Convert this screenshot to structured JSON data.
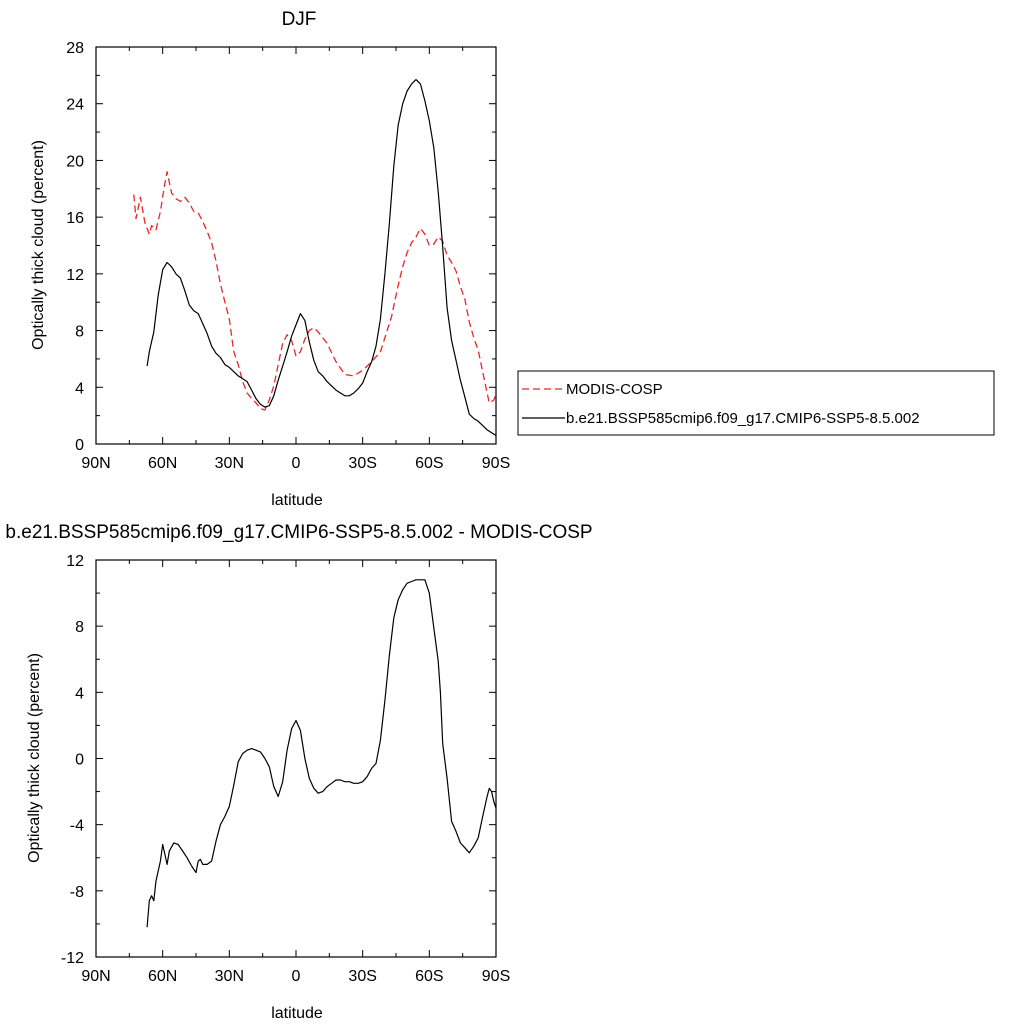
{
  "chart_data": [
    {
      "type": "line",
      "title": "DJF",
      "xlabel": "latitude",
      "ylabel": "Optically thick cloud (percent)",
      "xlim": [
        90,
        -90
      ],
      "ylim": [
        0,
        28
      ],
      "xticks": [
        {
          "value": 90,
          "label": "90N"
        },
        {
          "value": 60,
          "label": "60N"
        },
        {
          "value": 30,
          "label": "30N"
        },
        {
          "value": 0,
          "label": "0"
        },
        {
          "value": -30,
          "label": "30S"
        },
        {
          "value": -60,
          "label": "60S"
        },
        {
          "value": -90,
          "label": "90S"
        }
      ],
      "yticks": [
        0,
        4,
        8,
        12,
        16,
        20,
        24,
        28
      ],
      "legend_position": "right",
      "series": [
        {
          "name": "MODIS-COSP",
          "color": "#e8262b",
          "dashed": true,
          "points": [
            [
              73,
              17.6
            ],
            [
              72,
              15.9
            ],
            [
              70,
              17.4
            ],
            [
              68,
              15.6
            ],
            [
              66,
              14.8
            ],
            [
              65,
              15.4
            ],
            [
              63,
              15.1
            ],
            [
              61,
              16.4
            ],
            [
              59,
              18.4
            ],
            [
              58,
              19.2
            ],
            [
              56,
              17.7
            ],
            [
              54,
              17.3
            ],
            [
              52,
              17.1
            ],
            [
              50,
              17.4
            ],
            [
              48,
              17.0
            ],
            [
              46,
              16.4
            ],
            [
              44,
              16.3
            ],
            [
              42,
              15.7
            ],
            [
              40,
              15.0
            ],
            [
              38,
              14.2
            ],
            [
              36,
              12.9
            ],
            [
              34,
              11.3
            ],
            [
              32,
              10.0
            ],
            [
              30,
              8.8
            ],
            [
              28,
              6.5
            ],
            [
              26,
              5.6
            ],
            [
              24,
              4.4
            ],
            [
              22,
              3.6
            ],
            [
              20,
              3.2
            ],
            [
              18,
              2.9
            ],
            [
              16,
              2.5
            ],
            [
              14,
              2.4
            ],
            [
              12,
              3.1
            ],
            [
              10,
              4.1
            ],
            [
              8,
              5.6
            ],
            [
              6,
              7.1
            ],
            [
              4,
              7.7
            ],
            [
              2,
              7.3
            ],
            [
              0,
              6.2
            ],
            [
              -2,
              6.5
            ],
            [
              -4,
              7.4
            ],
            [
              -6,
              8.0
            ],
            [
              -8,
              8.2
            ],
            [
              -10,
              7.9
            ],
            [
              -14,
              7.1
            ],
            [
              -18,
              5.8
            ],
            [
              -22,
              4.9
            ],
            [
              -26,
              4.8
            ],
            [
              -30,
              5.2
            ],
            [
              -34,
              5.8
            ],
            [
              -38,
              6.5
            ],
            [
              -40,
              7.5
            ],
            [
              -43,
              9.0
            ],
            [
              -46,
              11.2
            ],
            [
              -48,
              12.5
            ],
            [
              -50,
              13.5
            ],
            [
              -52,
              14.2
            ],
            [
              -54,
              14.6
            ],
            [
              -56,
              15.2
            ],
            [
              -58,
              14.8
            ],
            [
              -60,
              14.0
            ],
            [
              -62,
              14.1
            ],
            [
              -64,
              14.6
            ],
            [
              -66,
              14.3
            ],
            [
              -68,
              13.3
            ],
            [
              -70,
              12.8
            ],
            [
              -72,
              12.2
            ],
            [
              -74,
              11.1
            ],
            [
              -76,
              10.2
            ],
            [
              -78,
              8.6
            ],
            [
              -80,
              7.5
            ],
            [
              -82,
              6.6
            ],
            [
              -84,
              5.1
            ],
            [
              -86,
              3.6
            ],
            [
              -87,
              2.9
            ],
            [
              -89,
              3.1
            ],
            [
              -90,
              3.5
            ]
          ]
        },
        {
          "name": "b.e21.BSSP585cmip6.f09_g17.CMIP6-SSP5-8.5.002",
          "color": "#000000",
          "dashed": false,
          "points": [
            [
              67,
              5.5
            ],
            [
              66,
              6.5
            ],
            [
              64,
              7.9
            ],
            [
              62,
              10.5
            ],
            [
              60,
              12.3
            ],
            [
              58,
              12.8
            ],
            [
              56,
              12.5
            ],
            [
              54,
              12.0
            ],
            [
              52,
              11.7
            ],
            [
              50,
              10.8
            ],
            [
              48,
              9.8
            ],
            [
              46,
              9.4
            ],
            [
              44,
              9.2
            ],
            [
              42,
              8.5
            ],
            [
              40,
              7.8
            ],
            [
              38,
              6.9
            ],
            [
              36,
              6.4
            ],
            [
              34,
              6.1
            ],
            [
              32,
              5.6
            ],
            [
              30,
              5.4
            ],
            [
              28,
              5.1
            ],
            [
              26,
              4.8
            ],
            [
              24,
              4.6
            ],
            [
              22,
              4.4
            ],
            [
              20,
              3.8
            ],
            [
              18,
              3.2
            ],
            [
              16,
              2.8
            ],
            [
              14,
              2.6
            ],
            [
              12,
              2.7
            ],
            [
              10,
              3.4
            ],
            [
              8,
              4.5
            ],
            [
              6,
              5.5
            ],
            [
              4,
              6.5
            ],
            [
              2,
              7.6
            ],
            [
              0,
              8.4
            ],
            [
              -2,
              9.2
            ],
            [
              -4,
              8.7
            ],
            [
              -6,
              7.2
            ],
            [
              -8,
              5.9
            ],
            [
              -10,
              5.1
            ],
            [
              -12,
              4.8
            ],
            [
              -14,
              4.4
            ],
            [
              -16,
              4.1
            ],
            [
              -18,
              3.8
            ],
            [
              -20,
              3.6
            ],
            [
              -22,
              3.4
            ],
            [
              -24,
              3.4
            ],
            [
              -26,
              3.6
            ],
            [
              -28,
              3.9
            ],
            [
              -30,
              4.3
            ],
            [
              -32,
              5.1
            ],
            [
              -34,
              5.8
            ],
            [
              -36,
              6.9
            ],
            [
              -38,
              8.8
            ],
            [
              -40,
              12.0
            ],
            [
              -42,
              15.5
            ],
            [
              -44,
              19.6
            ],
            [
              -46,
              22.5
            ],
            [
              -48,
              24.0
            ],
            [
              -50,
              24.9
            ],
            [
              -52,
              25.4
            ],
            [
              -54,
              25.7
            ],
            [
              -56,
              25.4
            ],
            [
              -58,
              24.2
            ],
            [
              -60,
              22.8
            ],
            [
              -62,
              20.9
            ],
            [
              -64,
              17.8
            ],
            [
              -66,
              13.9
            ],
            [
              -68,
              9.6
            ],
            [
              -70,
              7.3
            ],
            [
              -72,
              5.9
            ],
            [
              -74,
              4.5
            ],
            [
              -76,
              3.3
            ],
            [
              -78,
              2.1
            ],
            [
              -80,
              1.8
            ],
            [
              -82,
              1.6
            ],
            [
              -84,
              1.3
            ],
            [
              -86,
              1.0
            ],
            [
              -88,
              0.8
            ],
            [
              -90,
              0.6
            ]
          ]
        }
      ]
    },
    {
      "type": "line",
      "title": "b.e21.BSSP585cmip6.f09_g17.CMIP6-SSP5-8.5.002 - MODIS-COSP",
      "xlabel": "latitude",
      "ylabel": "Optically thick cloud (percent)",
      "xlim": [
        90,
        -90
      ],
      "ylim": [
        -12,
        12
      ],
      "xticks": [
        {
          "value": 90,
          "label": "90N"
        },
        {
          "value": 60,
          "label": "60N"
        },
        {
          "value": 30,
          "label": "30N"
        },
        {
          "value": 0,
          "label": "0"
        },
        {
          "value": -30,
          "label": "30S"
        },
        {
          "value": -60,
          "label": "60S"
        },
        {
          "value": -90,
          "label": "90S"
        }
      ],
      "yticks": [
        -12,
        -8,
        -4,
        0,
        4,
        8,
        12
      ],
      "series": [
        {
          "name": "",
          "color": "#000000",
          "dashed": false,
          "points": [
            [
              67,
              -10.2
            ],
            [
              66,
              -8.6
            ],
            [
              65,
              -8.3
            ],
            [
              64,
              -8.6
            ],
            [
              63,
              -7.4
            ],
            [
              61,
              -6.2
            ],
            [
              60,
              -5.2
            ],
            [
              59,
              -5.8
            ],
            [
              58,
              -6.4
            ],
            [
              57,
              -5.6
            ],
            [
              55,
              -5.1
            ],
            [
              53,
              -5.2
            ],
            [
              51,
              -5.6
            ],
            [
              49,
              -6.0
            ],
            [
              47,
              -6.5
            ],
            [
              45,
              -6.9
            ],
            [
              44,
              -6.2
            ],
            [
              43,
              -6.1
            ],
            [
              42,
              -6.4
            ],
            [
              40,
              -6.4
            ],
            [
              38,
              -6.2
            ],
            [
              36,
              -5.0
            ],
            [
              34,
              -4.0
            ],
            [
              32,
              -3.5
            ],
            [
              30,
              -2.9
            ],
            [
              28,
              -1.6
            ],
            [
              26,
              -0.2
            ],
            [
              24,
              0.3
            ],
            [
              22,
              0.5
            ],
            [
              20,
              0.6
            ],
            [
              18,
              0.5
            ],
            [
              16,
              0.4
            ],
            [
              14,
              0.0
            ],
            [
              12,
              -0.5
            ],
            [
              10,
              -1.7
            ],
            [
              8,
              -2.3
            ],
            [
              6,
              -1.4
            ],
            [
              4,
              0.5
            ],
            [
              2,
              1.8
            ],
            [
              0,
              2.3
            ],
            [
              -2,
              1.7
            ],
            [
              -4,
              0.0
            ],
            [
              -6,
              -1.2
            ],
            [
              -8,
              -1.8
            ],
            [
              -10,
              -2.1
            ],
            [
              -12,
              -2.0
            ],
            [
              -14,
              -1.7
            ],
            [
              -16,
              -1.5
            ],
            [
              -18,
              -1.3
            ],
            [
              -20,
              -1.3
            ],
            [
              -22,
              -1.4
            ],
            [
              -24,
              -1.4
            ],
            [
              -26,
              -1.5
            ],
            [
              -28,
              -1.5
            ],
            [
              -30,
              -1.4
            ],
            [
              -32,
              -1.1
            ],
            [
              -34,
              -0.6
            ],
            [
              -36,
              -0.3
            ],
            [
              -38,
              1.1
            ],
            [
              -40,
              3.5
            ],
            [
              -42,
              6.2
            ],
            [
              -44,
              8.5
            ],
            [
              -46,
              9.6
            ],
            [
              -48,
              10.2
            ],
            [
              -50,
              10.6
            ],
            [
              -52,
              10.7
            ],
            [
              -54,
              10.8
            ],
            [
              -56,
              10.8
            ],
            [
              -58,
              10.8
            ],
            [
              -60,
              10.0
            ],
            [
              -62,
              7.9
            ],
            [
              -64,
              5.9
            ],
            [
              -65,
              4.0
            ],
            [
              -66,
              0.9
            ],
            [
              -68,
              -1.2
            ],
            [
              -70,
              -3.8
            ],
            [
              -72,
              -4.4
            ],
            [
              -74,
              -5.1
            ],
            [
              -76,
              -5.4
            ],
            [
              -78,
              -5.7
            ],
            [
              -80,
              -5.3
            ],
            [
              -82,
              -4.8
            ],
            [
              -84,
              -3.5
            ],
            [
              -86,
              -2.3
            ],
            [
              -87,
              -1.8
            ],
            [
              -88,
              -2.0
            ],
            [
              -89,
              -2.6
            ],
            [
              -90,
              -3.0
            ]
          ]
        }
      ]
    }
  ]
}
